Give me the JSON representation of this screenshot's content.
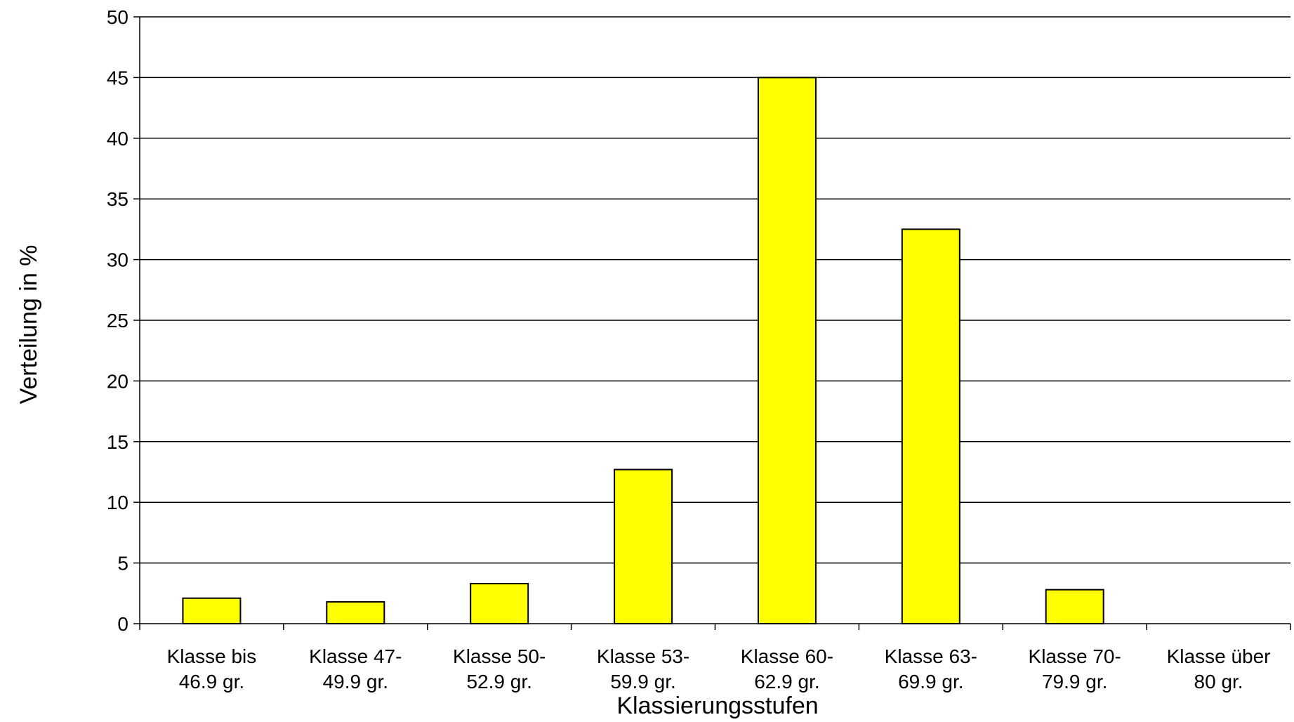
{
  "chart_data": {
    "type": "bar",
    "title": "",
    "xlabel": "Klassierungsstufen",
    "ylabel": "Verteilung in %",
    "ylim": [
      0,
      50
    ],
    "yticks": [
      0,
      5,
      10,
      15,
      20,
      25,
      30,
      35,
      40,
      45,
      50
    ],
    "grid": true,
    "legend": "none",
    "categories": [
      [
        "Klasse bis",
        "46.9 gr."
      ],
      [
        "Klasse 47-",
        "49.9 gr."
      ],
      [
        "Klasse 50-",
        "52.9 gr."
      ],
      [
        "Klasse 53-",
        "59.9 gr."
      ],
      [
        "Klasse 60-",
        "62.9 gr."
      ],
      [
        "Klasse 63-",
        "69.9 gr."
      ],
      [
        "Klasse 70-",
        "79.9 gr."
      ],
      [
        "Klasse über",
        "80 gr."
      ]
    ],
    "values": [
      2.1,
      1.8,
      3.3,
      12.7,
      45.0,
      32.5,
      2.8,
      0
    ],
    "colors": {
      "bar_fill": "#ffff00",
      "bar_stroke": "#000000",
      "grid": "#000000",
      "background": "#ffffff"
    }
  }
}
